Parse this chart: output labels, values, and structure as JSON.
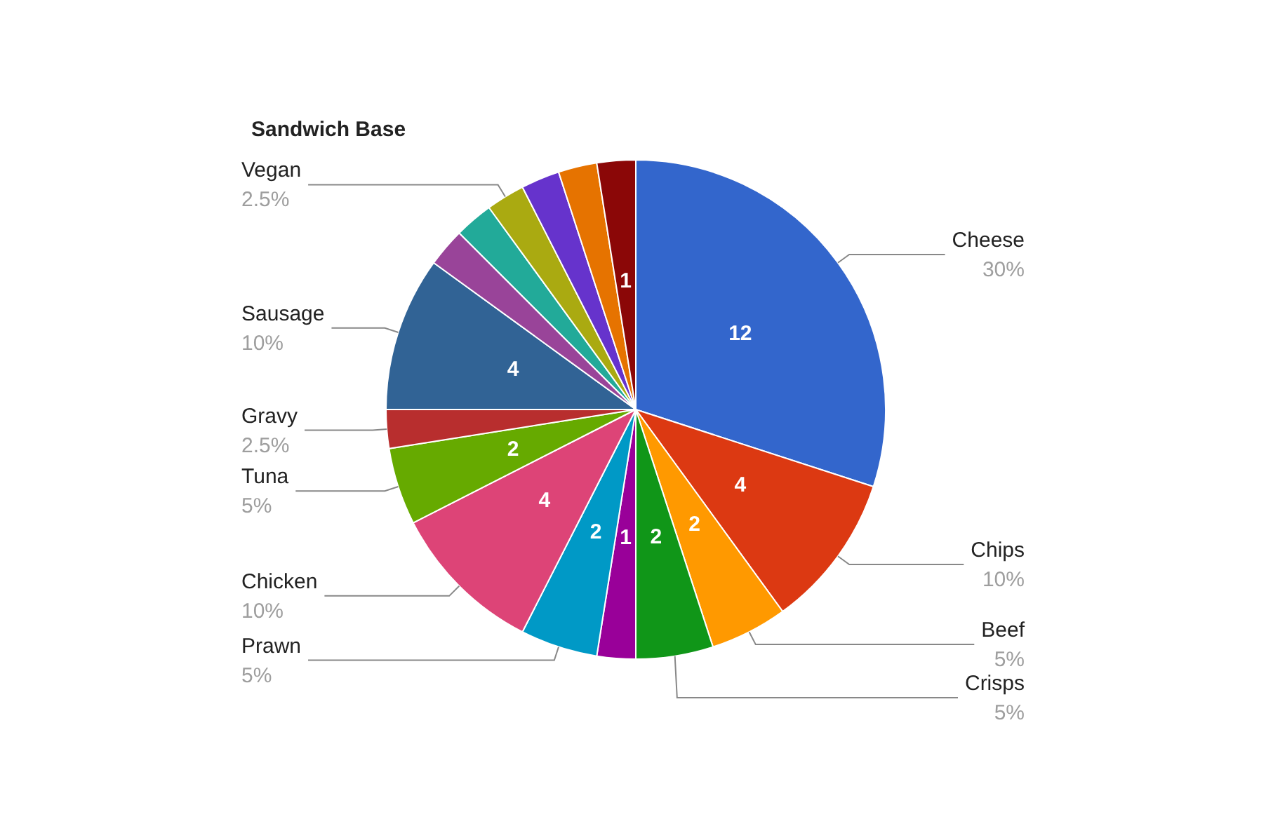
{
  "chart_data": {
    "type": "pie",
    "title": "Sandwich Base",
    "categories": [
      "Cheese",
      "Chips",
      "Beef",
      "Crisps",
      null,
      "Prawn",
      "Chicken",
      "Tuna",
      "Gravy",
      "Sausage",
      null,
      null,
      "Vegan",
      null,
      null,
      null
    ],
    "values": [
      12,
      4,
      2,
      2,
      1,
      2,
      4,
      2,
      1,
      4,
      1,
      1,
      1,
      1,
      1,
      1
    ],
    "value_labels": [
      "12",
      "4",
      "2",
      "2",
      "1",
      "2",
      "4",
      "2",
      null,
      "4",
      null,
      null,
      null,
      null,
      null,
      "1"
    ],
    "colors": [
      "#3366cc",
      "#dc3912",
      "#ff9900",
      "#109618",
      "#990099",
      "#0099c6",
      "#dd4477",
      "#66aa00",
      "#b82e2e",
      "#316395",
      "#994499",
      "#22aa99",
      "#aaaa11",
      "#6633cc",
      "#e67300",
      "#8b0707"
    ],
    "annotations": [
      {
        "text": "30%",
        "x": "Cheese"
      },
      {
        "text": "10%",
        "x": "Chips"
      },
      {
        "text": "5%",
        "x": "Beef"
      },
      {
        "text": "5%",
        "x": "Crisps"
      },
      {
        "text": "5%",
        "x": "Prawn"
      },
      {
        "text": "10%",
        "x": "Chicken"
      },
      {
        "text": "5%",
        "x": "Tuna"
      },
      {
        "text": "2.5%",
        "x": "Gravy"
      },
      {
        "text": "10%",
        "x": "Sausage"
      },
      {
        "text": "2.5%",
        "x": "Vegan"
      }
    ],
    "legend": false
  }
}
